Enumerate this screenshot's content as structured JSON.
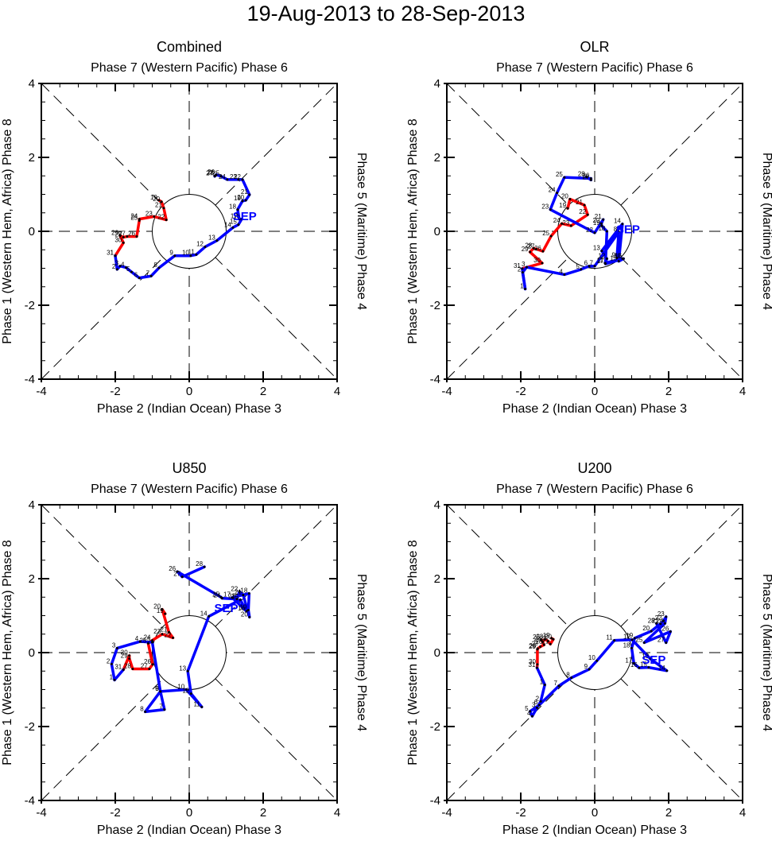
{
  "title": "19-Aug-2013 to 28-Sep-2013",
  "colors": {
    "aug": "#ff0000",
    "sep": "#0000ff",
    "axis": "#000000"
  },
  "chart_data": [
    {
      "type": "line",
      "title": "Combined",
      "top_label": "Phase 7 (Western Pacific) Phase 6",
      "bottom_label": "Phase 2 (Indian Ocean) Phase 3",
      "left_label": "Phase 1 (Western Hem, Africa) Phase 8",
      "right_label": "Phase 5 (Maritime) Phase 4",
      "xlim": [
        -4,
        4
      ],
      "ylim": [
        -4,
        4
      ],
      "xticks": [
        "-4",
        "-2",
        "0",
        "2",
        "4"
      ],
      "yticks": [
        "-4",
        "-2",
        "0",
        "2",
        "4"
      ],
      "month_label": "SEP",
      "month_label_pos": [
        1.5,
        0.3
      ],
      "series": [
        {
          "name": "Aug",
          "days": [
            19,
            20,
            21,
            22,
            23,
            24,
            25,
            26,
            27,
            28,
            29,
            30,
            31
          ],
          "x": [
            -0.82,
            -0.75,
            -0.69,
            -0.62,
            -0.95,
            -1.35,
            -1.35,
            -1.42,
            -1.68,
            -1.78,
            -1.87,
            -1.78,
            -2.0
          ],
          "y": [
            0.84,
            0.8,
            0.63,
            0.31,
            0.4,
            0.33,
            0.29,
            -0.14,
            -0.14,
            -0.16,
            -0.12,
            -0.31,
            -0.66
          ]
        },
        {
          "name": "Sep",
          "days": [
            1,
            2,
            3,
            4,
            5,
            6,
            7,
            8,
            9,
            10,
            11,
            12,
            13,
            14,
            15,
            16,
            17,
            18,
            19,
            20,
            21,
            22,
            23,
            24,
            25,
            26,
            27,
            28
          ],
          "x": [
            -2.0,
            -1.95,
            -1.87,
            -1.71,
            -1.56,
            -1.35,
            -1.03,
            -0.82,
            -0.39,
            0.04,
            0.19,
            0.43,
            0.75,
            1.18,
            1.33,
            1.42,
            1.35,
            1.31,
            1.44,
            1.53,
            1.63,
            1.44,
            1.33,
            1.03,
            0.86,
            0.73,
            0.69,
            0.71
          ],
          "y": [
            -0.66,
            -1.03,
            -0.94,
            -0.98,
            -1.1,
            -1.26,
            -1.21,
            -0.99,
            -0.66,
            -0.66,
            -0.63,
            -0.42,
            -0.25,
            0.1,
            0.18,
            0.33,
            0.33,
            0.59,
            0.82,
            0.84,
            0.99,
            1.4,
            1.4,
            1.4,
            1.49,
            1.53,
            1.49,
            1.51
          ]
        }
      ]
    },
    {
      "type": "line",
      "title": "OLR",
      "top_label": "Phase 7 (Western Pacific) Phase 6",
      "bottom_label": "Phase 2 (Indian Ocean) Phase 3",
      "left_label": "Phase 1 (Western Hem, Africa) Phase 8",
      "right_label": "Phase 5 (Maritime) Phase 4",
      "xlim": [
        -4,
        4
      ],
      "ylim": [
        -4,
        4
      ],
      "xticks": [
        "-4",
        "-2",
        "0",
        "2",
        "4"
      ],
      "yticks": [
        "-4",
        "-2",
        "0",
        "2",
        "4"
      ],
      "month_label": "SEP",
      "month_label_pos": [
        0.9,
        -0.05
      ],
      "series": [
        {
          "name": "Aug",
          "days": [
            19,
            20,
            21,
            22,
            23,
            24,
            25,
            26,
            27,
            28,
            29,
            30,
            31
          ],
          "x": [
            -0.73,
            -0.67,
            -0.28,
            -0.19,
            -0.64,
            -0.89,
            -1.18,
            -1.4,
            -1.58,
            -1.65,
            -1.75,
            -1.42,
            -1.96
          ],
          "y": [
            0.62,
            0.87,
            0.71,
            0.45,
            0.15,
            0.21,
            -0.13,
            -0.54,
            -0.48,
            -0.46,
            -0.56,
            -0.86,
            -1.01
          ]
        },
        {
          "name": "Sep",
          "days": [
            1,
            2,
            3,
            4,
            5,
            6,
            7,
            8,
            9,
            10,
            11,
            12,
            13,
            14,
            15,
            16,
            17,
            18,
            19,
            20,
            21,
            22,
            23,
            24,
            25,
            26,
            27,
            28
          ],
          "x": [
            -1.88,
            -1.95,
            -1.84,
            -0.82,
            -0.37,
            -0.15,
            0.0,
            0.65,
            0.6,
            0.75,
            0.28,
            0.33,
            0.19,
            0.75,
            0.65,
            0.78,
            0.29,
            0.33,
            0.19,
            0.18,
            0.23,
            0.0,
            -1.2,
            -1.02,
            -0.82,
            -0.1,
            -0.1,
            -0.22
          ],
          "y": [
            -1.56,
            -1.11,
            -0.97,
            -1.17,
            -1.03,
            -0.94,
            -0.94,
            -0.02,
            -0.72,
            -0.74,
            -0.86,
            -0.74,
            -0.53,
            0.2,
            -0.81,
            -0.74,
            -0.88,
            0.0,
            0.15,
            0.21,
            0.32,
            -0.04,
            0.59,
            1.04,
            1.46,
            1.43,
            1.39,
            1.47
          ]
        }
      ]
    },
    {
      "type": "line",
      "title": "U850",
      "top_label": "Phase 7 (Western Pacific) Phase 6",
      "bottom_label": "Phase 2 (Indian Ocean) Phase 3",
      "left_label": "Phase 1 (Western Hem, Africa) Phase 8",
      "right_label": "Phase 5 (Maritime) Phase 4",
      "xlim": [
        -4,
        4
      ],
      "ylim": [
        -4,
        4
      ],
      "xticks": [
        "-4",
        "-2",
        "0",
        "2",
        "4"
      ],
      "yticks": [
        "-4",
        "-2",
        "0",
        "2",
        "4"
      ],
      "month_label": "SEP",
      "month_label_pos": [
        1.0,
        1.1
      ],
      "series": [
        {
          "name": "Aug",
          "days": [
            19,
            20,
            21,
            22,
            23,
            24,
            25,
            26,
            27,
            28,
            29,
            30,
            31
          ],
          "x": [
            -0.65,
            -0.73,
            -0.55,
            -0.44,
            -0.73,
            -1.0,
            -1.11,
            -0.99,
            -1.08,
            -1.53,
            -1.62,
            -1.62,
            -1.78
          ],
          "y": [
            1.05,
            1.17,
            0.55,
            0.4,
            0.5,
            0.33,
            0.25,
            -0.32,
            -0.44,
            -0.44,
            -0.16,
            -0.08,
            -0.46
          ]
        },
        {
          "name": "Sep",
          "days": [
            1,
            2,
            3,
            4,
            5,
            6,
            7,
            8,
            9,
            10,
            11,
            12,
            13,
            14,
            15,
            16,
            17,
            18,
            19,
            20,
            21,
            22,
            23,
            24,
            25,
            26,
            27,
            28
          ],
          "x": [
            -2.02,
            -2.1,
            -1.95,
            -1.33,
            -1.0,
            -0.78,
            -0.67,
            -1.19,
            -0.78,
            -0.08,
            0.34,
            0.05,
            -0.04,
            0.53,
            1.38,
            1.55,
            1.16,
            1.62,
            1.6,
            1.63,
            1.46,
            1.36,
            1.29,
            0.89,
            0.86,
            -0.32,
            -0.19,
            0.41
          ],
          "y": [
            -0.74,
            -0.31,
            0.12,
            0.3,
            0.28,
            -1.05,
            -1.54,
            -1.6,
            -1.05,
            -1.0,
            -1.47,
            -1.11,
            -0.5,
            0.98,
            1.43,
            1.12,
            1.49,
            1.6,
            1.15,
            0.96,
            1.56,
            1.65,
            1.45,
            1.47,
            1.5,
            2.19,
            2.05,
            2.32
          ]
        }
      ]
    },
    {
      "type": "line",
      "title": "U200",
      "top_label": "Phase 7 (Western Pacific) Phase 6",
      "bottom_label": "Phase 2 (Indian Ocean) Phase 3",
      "left_label": "Phase 1 (Western Hem, Africa) Phase 8",
      "right_label": "Phase 5 (Maritime) Phase 4",
      "xlim": [
        -4,
        4
      ],
      "ylim": [
        -4,
        4
      ],
      "xticks": [
        "-4",
        "-2",
        "0",
        "2",
        "4"
      ],
      "yticks": [
        "-4",
        "-2",
        "0",
        "2",
        "4"
      ],
      "month_label": "SEP",
      "month_label_pos": [
        1.6,
        -0.3
      ],
      "series": [
        {
          "name": "Aug",
          "days": [
            19,
            20,
            21,
            22,
            23,
            24,
            25,
            26,
            27,
            28,
            29,
            30,
            31
          ],
          "x": [
            -1.17,
            -1.12,
            -1.2,
            -1.26,
            -1.35,
            -1.41,
            -1.44,
            -1.37,
            -1.47,
            -1.54,
            -1.55,
            -1.55,
            -1.56
          ],
          "y": [
            0.39,
            0.36,
            0.23,
            0.31,
            0.36,
            0.29,
            0.34,
            0.21,
            0.16,
            0.11,
            0.09,
            -0.32,
            -0.41
          ]
        },
        {
          "name": "Sep",
          "days": [
            1,
            2,
            3,
            4,
            5,
            6,
            7,
            8,
            9,
            10,
            11,
            12,
            13,
            14,
            15,
            16,
            17,
            18,
            19,
            20,
            21,
            22,
            23,
            24,
            25,
            26,
            27,
            28
          ],
          "x": [
            -1.35,
            -1.46,
            -1.56,
            -1.69,
            -1.75,
            -1.5,
            -0.97,
            -0.63,
            -0.15,
            0.06,
            0.53,
            1.01,
            1.51,
            1.95,
            1.46,
            1.2,
            1.06,
            1.0,
            1.08,
            1.53,
            1.78,
            1.86,
            1.93,
            1.9,
            1.34,
            2.05,
            1.93,
            1.67
          ],
          "y": [
            -0.87,
            -1.32,
            -1.49,
            -1.72,
            -1.59,
            -1.42,
            -0.9,
            -0.68,
            -0.45,
            -0.22,
            0.33,
            0.35,
            -0.17,
            -0.49,
            -0.4,
            -0.41,
            -0.29,
            0.12,
            0.39,
            0.58,
            0.78,
            0.86,
            0.97,
            0.79,
            0.27,
            0.57,
            0.27,
            0.79
          ]
        }
      ]
    }
  ]
}
